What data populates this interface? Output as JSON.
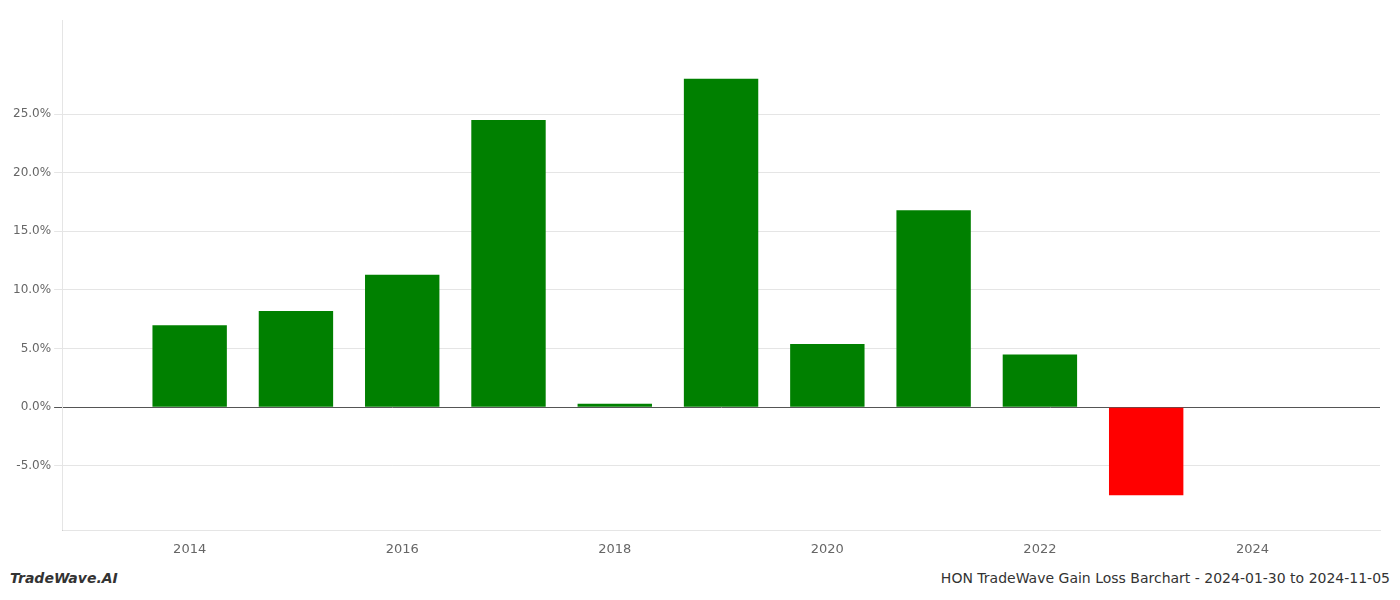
{
  "chart_data": {
    "type": "bar",
    "x": [
      2014,
      2015,
      2016,
      2017,
      2018,
      2019,
      2020,
      2021,
      2022,
      2023
    ],
    "values": [
      7.0,
      8.2,
      11.3,
      24.5,
      0.3,
      28.0,
      5.4,
      16.8,
      4.5,
      -7.5
    ],
    "colors": [
      "#008000",
      "#008000",
      "#008000",
      "#008000",
      "#008000",
      "#008000",
      "#008000",
      "#008000",
      "#008000",
      "#ff0000"
    ],
    "xlim": [
      2012.8,
      2025.2
    ],
    "xticks": [
      2014,
      2016,
      2018,
      2020,
      2022,
      2024
    ],
    "ylim": [
      -10.5,
      33
    ],
    "yticks": [
      {
        "value": -5.0,
        "label": "-5.0%"
      },
      {
        "value": 0.0,
        "label": "0.0%"
      },
      {
        "value": 5.0,
        "label": "5.0%"
      },
      {
        "value": 10.0,
        "label": "10.0%"
      },
      {
        "value": 15.0,
        "label": "15.0%"
      },
      {
        "value": 20.0,
        "label": "20.0%"
      },
      {
        "value": 25.0,
        "label": "25.0%"
      }
    ],
    "grid": true,
    "annotations": [
      "TradeWave.AI",
      "HON TradeWave Gain Loss Barchart - 2024-01-30 to 2024-11-05"
    ]
  }
}
